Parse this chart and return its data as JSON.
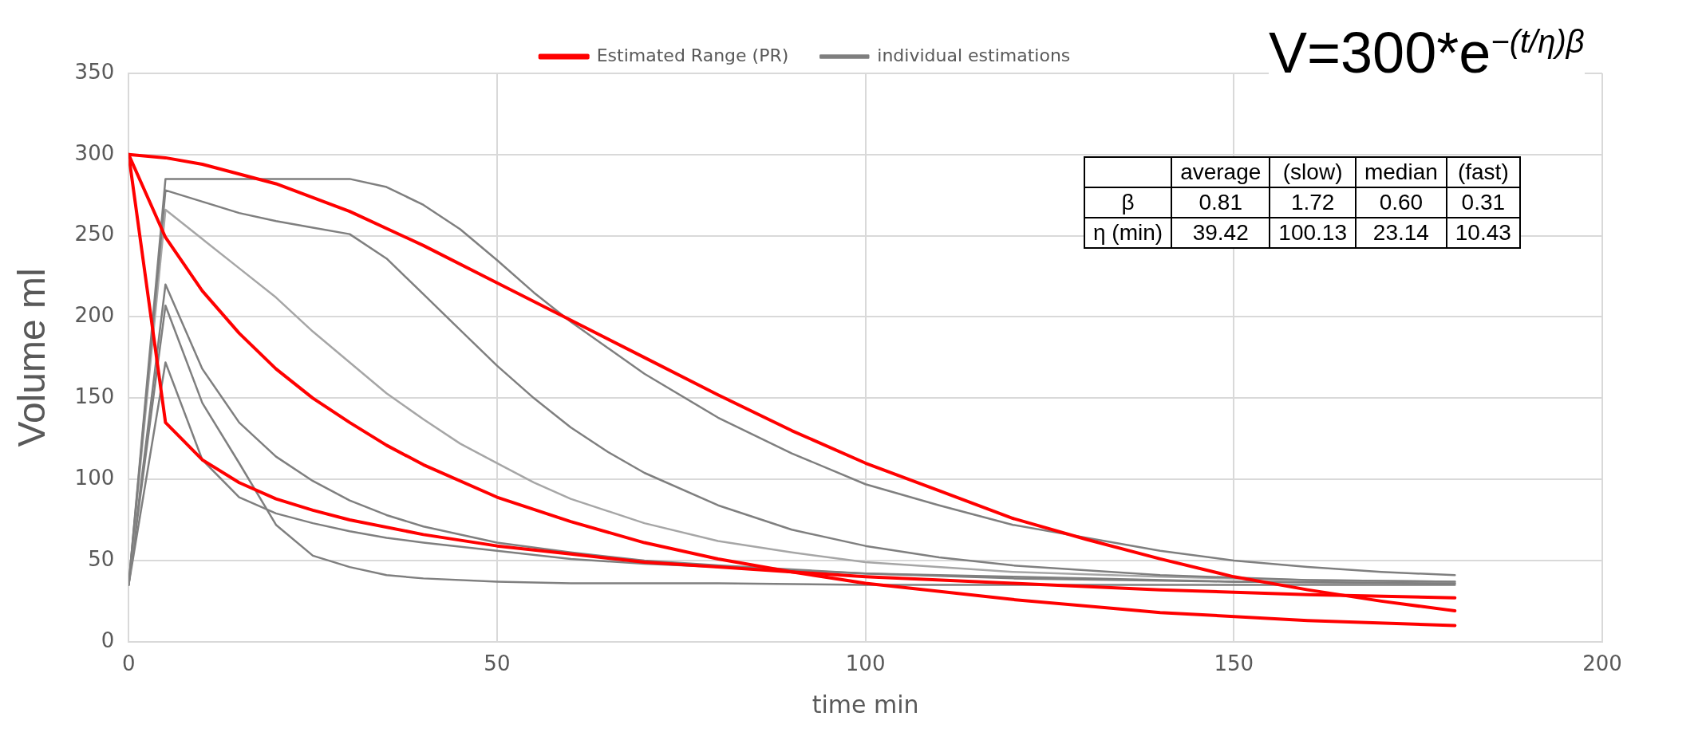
{
  "chart_data": {
    "type": "line",
    "xlabel": "time min",
    "ylabel": "Volume ml",
    "xlim": [
      0,
      200
    ],
    "xticks": [
      0,
      50,
      100,
      150,
      200
    ],
    "ylim": [
      0,
      350
    ],
    "yticks": [
      0,
      50,
      100,
      150,
      200,
      250,
      300,
      350
    ],
    "grid": true,
    "legend": "top",
    "marker": "none",
    "line_style": "solid",
    "series": [
      {
        "name": "Estimated Range (PR)",
        "color": "#ff0000",
        "x": [
          0,
          5,
          10,
          20,
          30,
          40,
          50,
          60,
          70,
          80,
          90,
          100,
          110,
          120,
          130,
          140,
          150,
          160,
          170,
          180
        ],
        "values": [
          300,
          298,
          294,
          282,
          265,
          244,
          221,
          198,
          175,
          152,
          130,
          110,
          93,
          76,
          63,
          51,
          40,
          32,
          25,
          19
        ]
      },
      {
        "color": "#ff0000",
        "x": [
          0,
          5,
          10,
          15,
          20,
          25,
          30,
          35,
          40,
          50,
          60,
          70,
          80,
          90,
          100,
          120,
          140,
          160,
          180
        ],
        "values": [
          300,
          249,
          216,
          190,
          168,
          150,
          135,
          121,
          109,
          89,
          74,
          61,
          51,
          43,
          36,
          26,
          18,
          13,
          10
        ]
      },
      {
        "color": "#ff0000",
        "x": [
          0,
          5,
          10,
          15,
          20,
          25,
          30,
          40,
          50,
          60,
          70,
          80,
          90,
          100,
          120,
          140,
          160,
          180
        ],
        "values": [
          300,
          135,
          112,
          98,
          88,
          81,
          75,
          66,
          59,
          54,
          49,
          46,
          43,
          40,
          36,
          32,
          29,
          27
        ]
      },
      {
        "name": "individual estimations",
        "color": "#7f7f7f",
        "x": [
          0,
          5,
          30,
          35,
          40,
          45,
          50,
          55,
          60,
          70,
          80,
          90,
          100,
          110,
          120,
          140,
          150,
          160,
          170,
          180
        ],
        "values": [
          35,
          285,
          285,
          280,
          269,
          254,
          235,
          215,
          197,
          165,
          138,
          116,
          97,
          84,
          72,
          56,
          50,
          46,
          43,
          41
        ]
      },
      {
        "color": "#7f7f7f",
        "x": [
          0,
          5,
          10,
          15,
          20,
          25,
          30,
          35,
          40,
          45,
          50,
          55,
          60,
          65,
          70,
          80,
          90,
          100,
          110,
          120,
          140,
          160,
          180
        ],
        "values": [
          35,
          278,
          271,
          264,
          259,
          255,
          251,
          236,
          214,
          192,
          170,
          150,
          132,
          117,
          104,
          84,
          69,
          59,
          52,
          47,
          41,
          38,
          37
        ]
      },
      {
        "color": "#a6a6a6",
        "x": [
          0,
          5,
          15,
          20,
          25,
          30,
          35,
          40,
          45,
          50,
          55,
          60,
          70,
          80,
          90,
          100,
          120,
          140,
          160,
          180
        ],
        "values": [
          35,
          266,
          230,
          212,
          191,
          172,
          153,
          137,
          122,
          110,
          98,
          88,
          73,
          62,
          55,
          49,
          43,
          40,
          38,
          37
        ]
      },
      {
        "color": "#7f7f7f",
        "x": [
          0,
          5,
          10,
          15,
          20,
          25,
          30,
          35,
          40,
          50,
          60,
          70,
          80,
          100,
          120,
          150,
          180
        ],
        "values": [
          35,
          220,
          168,
          135,
          114,
          99,
          87,
          78,
          71,
          61,
          55,
          50,
          47,
          42,
          39,
          37,
          36
        ]
      },
      {
        "color": "#7f7f7f",
        "x": [
          0,
          5,
          10,
          15,
          20,
          25,
          30,
          35,
          40,
          50,
          60,
          80,
          100,
          140,
          180
        ],
        "values": [
          35,
          207,
          147,
          110,
          72,
          53,
          46,
          41,
          39,
          37,
          36,
          36,
          35,
          35,
          35
        ]
      },
      {
        "color": "#7f7f7f",
        "x": [
          0,
          5,
          10,
          15,
          20,
          25,
          30,
          35,
          40,
          50,
          60,
          70,
          80,
          100,
          120,
          150,
          180
        ],
        "values": [
          35,
          172,
          112,
          89,
          79,
          73,
          68,
          64,
          61,
          56,
          51,
          48,
          46,
          42,
          40,
          37,
          36
        ]
      }
    ],
    "annotations": [
      "V=300*e$^{−(t/η)}$$^{β}$",
      "average",
      "(slow)",
      "median",
      "(fast)",
      "β",
      "0.81",
      "1.72",
      "0.60",
      "0.31",
      "η (min)",
      "39.42",
      "100.13",
      "23.14",
      "10.43"
    ]
  }
}
